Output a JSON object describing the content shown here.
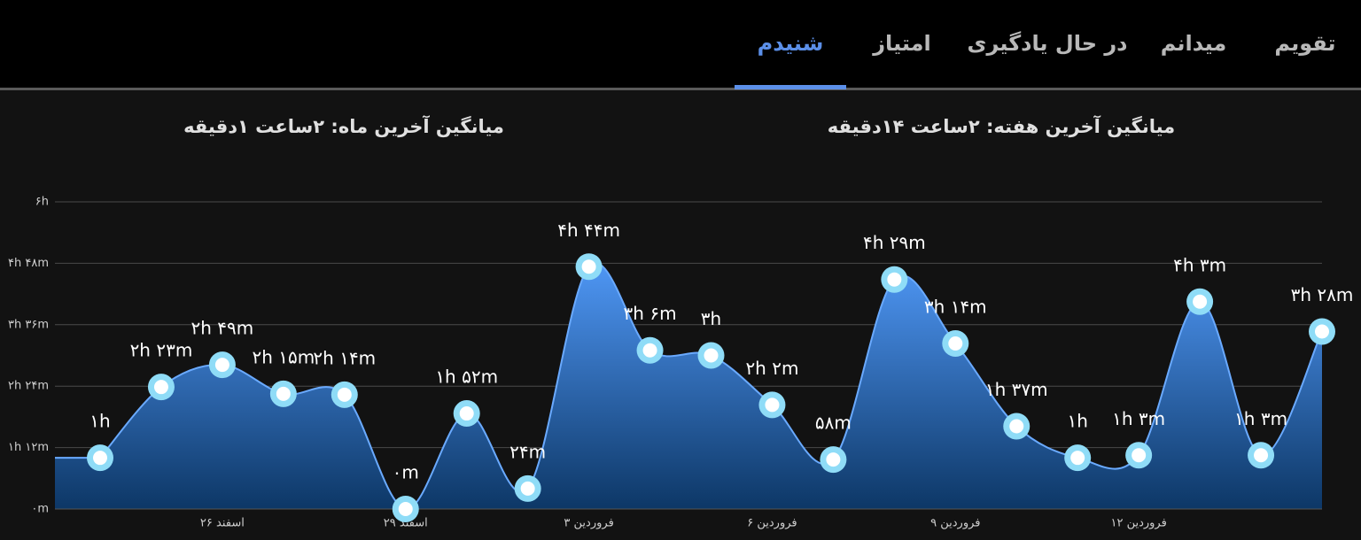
{
  "tabs": [
    {
      "label": "تقویم",
      "active": false
    },
    {
      "label": "میدانم",
      "active": false
    },
    {
      "label": "در حال یادگیری",
      "active": false
    },
    {
      "label": "امتیاز",
      "active": false
    },
    {
      "label": "شنیدم",
      "active": true
    }
  ],
  "stats": {
    "week": "میانگین آخرین هفته: ۲ساعت  ۱۴دقیقه",
    "month": "میانگین آخرین ماه: ۲ساعت  ۱دقیقه"
  },
  "chart_data": {
    "type": "area",
    "categories": [
      null,
      null,
      "۲۶ اسفند",
      null,
      null,
      "۲۹ اسفند",
      null,
      null,
      "۳ فروردین",
      null,
      null,
      "۶ فروردین",
      null,
      null,
      "۹ فروردین",
      null,
      null,
      "۱۲ فروردین",
      null,
      null,
      null
    ],
    "values": [
      60,
      143,
      169,
      135,
      134,
      0,
      112,
      24,
      284,
      186,
      180,
      122,
      58,
      269,
      194,
      97,
      60,
      63,
      243,
      63,
      208
    ],
    "value_labels": [
      "۱h",
      "۲h ۲۳m",
      "۲h ۴۹m",
      "۲h ۱۵m",
      "۲h ۱۴m",
      "۰m",
      "۱h ۵۲m",
      "۲۴m",
      "۴h ۴۴m",
      "۳h ۶m",
      "۳h",
      "۲h ۲m",
      "۵۸m",
      "۴h ۲۹m",
      "۳h ۱۴m",
      "۱h ۳۷m",
      "۱h",
      "۱h ۳m",
      "۴h ۳m",
      "۱h ۳m",
      "۳h ۲۸m"
    ],
    "ylim": [
      0,
      360
    ],
    "yticks": [
      {
        "value": 0,
        "label": "۰m"
      },
      {
        "value": 72,
        "label": "۱h ۱۲m"
      },
      {
        "value": 144,
        "label": "۲h ۲۴m"
      },
      {
        "value": 216,
        "label": "۳h ۳۶m"
      },
      {
        "value": 288,
        "label": "۴h ۴۸m"
      },
      {
        "value": 360,
        "label": "۶h"
      }
    ],
    "grid": true,
    "color": "#4a90f0"
  }
}
